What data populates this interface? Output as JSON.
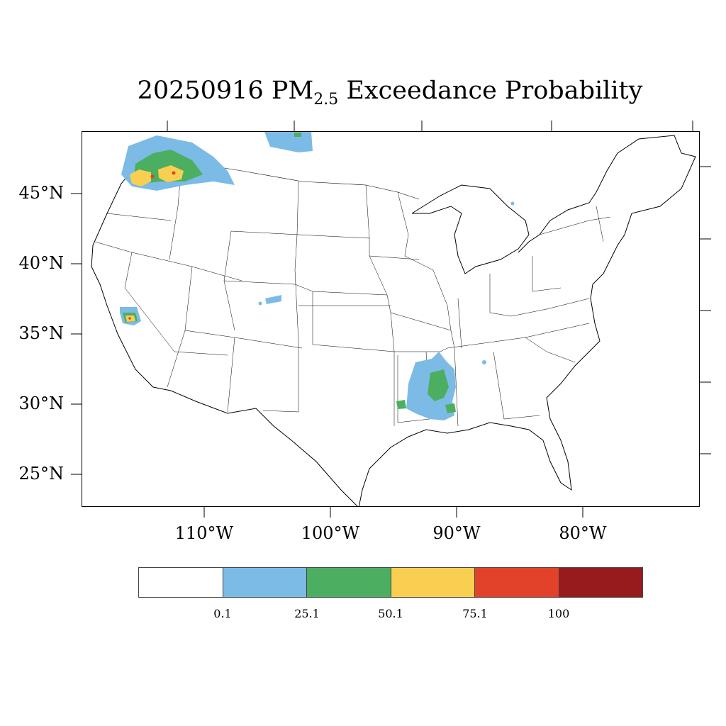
{
  "title": {
    "prefix": "20250916 PM",
    "subscript": "2.5",
    "suffix": " Exceedance Probability"
  },
  "map": {
    "lat_labels": [
      "45°N",
      "40°N",
      "35°N",
      "30°N",
      "25°N"
    ],
    "lon_labels": [
      "110°W",
      "100°W",
      "90°W",
      "80°W"
    ]
  },
  "legend": {
    "colors": [
      "#ffffff",
      "#7bbbe6",
      "#4cae60",
      "#f8cf51",
      "#e24229",
      "#971a1d"
    ],
    "labels": [
      "0.1",
      "25.1",
      "50.1",
      "75.1",
      "100"
    ]
  }
}
